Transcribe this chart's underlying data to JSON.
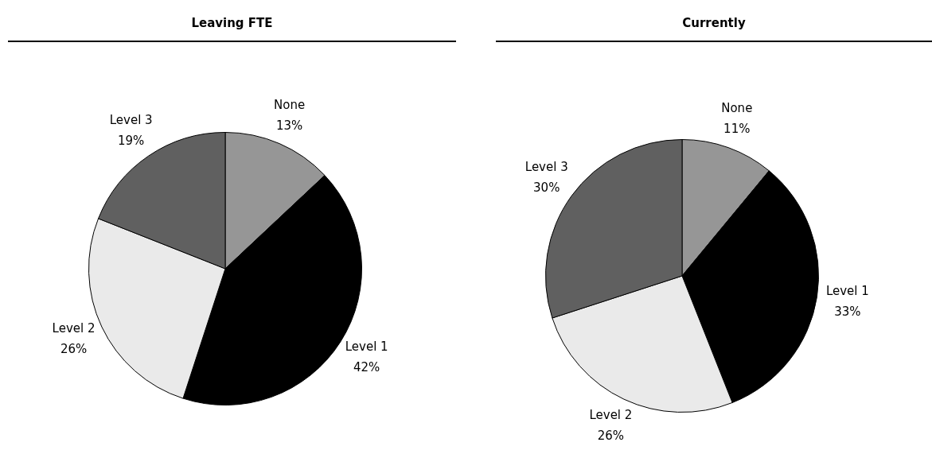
{
  "chart_data": [
    {
      "type": "pie",
      "title": "Leaving FTE",
      "categories": [
        "None",
        "Level 1",
        "Level 2",
        "Level 3"
      ],
      "values": [
        13,
        42,
        26,
        19
      ],
      "colors": [
        "#969696",
        "#000000",
        "#eaeaea",
        "#606060"
      ],
      "value_labels": [
        "13%",
        "42%",
        "26%",
        "19%"
      ]
    },
    {
      "type": "pie",
      "title": "Currently",
      "categories": [
        "None",
        "Level 1",
        "Level 2",
        "Level 3"
      ],
      "values": [
        11,
        33,
        26,
        30
      ],
      "colors": [
        "#969696",
        "#000000",
        "#eaeaea",
        "#606060"
      ],
      "value_labels": [
        "11%",
        "33%",
        "26%",
        "30%"
      ]
    }
  ]
}
